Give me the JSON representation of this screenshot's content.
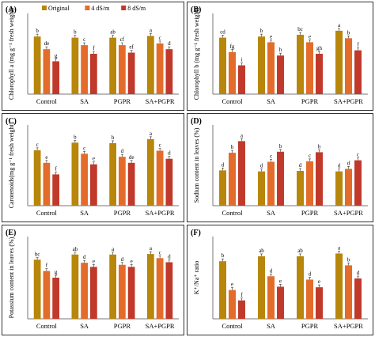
{
  "chart_data": [
    {
      "type": "bar",
      "panel_label": "(A)",
      "title": "",
      "ylabel": "Chlorophyll a (mg g⁻¹ fresh weight)",
      "categories": [
        "Control",
        "SA",
        "PGPR",
        "SA+PGPR"
      ],
      "legend": [
        "Original",
        "4 dS/m",
        "8 dS/m"
      ],
      "colors": [
        "#B8860B",
        "#E46C2A",
        "#C0392B"
      ],
      "series": [
        {
          "name": "Original",
          "values": [
            1.0,
            0.98,
            0.98,
            1.01
          ],
          "labels": [
            "b",
            "b",
            "ab",
            "a"
          ]
        },
        {
          "name": "4 dS/m",
          "values": [
            0.78,
            0.85,
            0.85,
            0.88
          ],
          "labels": [
            "de",
            "c",
            "cf",
            "c"
          ]
        },
        {
          "name": "8 dS/m",
          "values": [
            0.57,
            0.7,
            0.72,
            0.78
          ],
          "labels": [
            "g",
            "f",
            "ef",
            "d"
          ]
        }
      ],
      "ylim": [
        0,
        1.4
      ],
      "grid": false,
      "legend_position": "top"
    },
    {
      "type": "bar",
      "panel_label": "(B)",
      "title": "",
      "ylabel": "Chlorophyll b (mg g⁻¹ fresh weight)",
      "categories": [
        "Control",
        "SA",
        "PGPR",
        "SA+PGPR"
      ],
      "colors": [
        "#B8860B",
        "#E46C2A",
        "#C0392B"
      ],
      "series": [
        {
          "name": "Original",
          "values": [
            0.98,
            1.0,
            1.03,
            1.1
          ],
          "labels": [
            "cd",
            "b",
            "bc",
            "a"
          ]
        },
        {
          "name": "4 dS/m",
          "values": [
            0.73,
            0.9,
            0.9,
            0.97
          ],
          "labels": [
            "fg",
            "e",
            "e",
            "b"
          ]
        },
        {
          "name": "8 dS/m",
          "values": [
            0.5,
            0.67,
            0.7,
            0.76
          ],
          "labels": [
            "i",
            "h",
            "gh",
            "f"
          ]
        }
      ],
      "ylim": [
        0,
        1.4
      ],
      "grid": false
    },
    {
      "type": "bar",
      "panel_label": "(C)",
      "title": "",
      "ylabel": "Carotenoids(mg g⁻¹ fresh weight)",
      "categories": [
        "Control",
        "SA",
        "PGPR",
        "SA+PGPR"
      ],
      "colors": [
        "#B8860B",
        "#E46C2A",
        "#C0392B"
      ],
      "series": [
        {
          "name": "Original",
          "values": [
            1.1,
            1.25,
            1.24,
            1.32
          ],
          "labels": [
            "c",
            "b",
            "b",
            "a"
          ]
        },
        {
          "name": "4 dS/m",
          "values": [
            0.85,
            1.03,
            0.97,
            1.09
          ],
          "labels": [
            "e",
            "c",
            "d",
            "c"
          ]
        },
        {
          "name": "8 dS/m",
          "values": [
            0.62,
            0.82,
            0.85,
            0.93
          ],
          "labels": [
            "f",
            "e",
            "de",
            "d"
          ]
        }
      ],
      "ylim": [
        0,
        1.6
      ],
      "grid": false
    },
    {
      "type": "bar",
      "panel_label": "(D)",
      "title": "",
      "ylabel": "Sodium content in leaves (%)",
      "categories": [
        "Control",
        "SA",
        "PGPR",
        "SA+PGPR"
      ],
      "colors": [
        "#B8860B",
        "#E46C2A",
        "#C0392B"
      ],
      "series": [
        {
          "name": "Original",
          "values": [
            0.7,
            0.68,
            0.69,
            0.68
          ],
          "labels": [
            "d",
            "d",
            "d",
            "d"
          ]
        },
        {
          "name": "4 dS/m",
          "values": [
            1.05,
            0.87,
            0.88,
            0.73
          ],
          "labels": [
            "b",
            "c",
            "c",
            "d"
          ]
        },
        {
          "name": "8 dS/m",
          "values": [
            1.28,
            1.07,
            1.06,
            0.9
          ],
          "labels": [
            "a",
            "b",
            "b",
            "c"
          ]
        }
      ],
      "ylim": [
        0,
        1.6
      ],
      "grid": false
    },
    {
      "type": "bar",
      "panel_label": "(E)",
      "title": "",
      "ylabel": "Potassium content in leaves (%)",
      "categories": [
        "Control",
        "SA",
        "PGPR",
        "SA+PGPR"
      ],
      "colors": [
        "#B8860B",
        "#E46C2A",
        "#C0392B"
      ],
      "series": [
        {
          "name": "Original",
          "values": [
            1.15,
            1.25,
            1.25,
            1.26
          ],
          "labels": [
            "bc",
            "ab",
            "a",
            "a"
          ]
        },
        {
          "name": "4 dS/m",
          "values": [
            0.93,
            1.09,
            1.05,
            1.18
          ],
          "labels": [
            "f",
            "d",
            "d",
            "c"
          ]
        },
        {
          "name": "8 dS/m",
          "values": [
            0.8,
            1.01,
            1.01,
            1.1
          ],
          "labels": [
            "g",
            "e",
            "e",
            "d"
          ]
        }
      ],
      "ylim": [
        0,
        1.6
      ],
      "grid": false
    },
    {
      "type": "bar",
      "panel_label": "(F)",
      "title": "",
      "ylabel": "K⁺/Na⁺ ratio",
      "categories": [
        "Control",
        "SA",
        "PGPR",
        "SA+PGPR"
      ],
      "colors": [
        "#B8860B",
        "#E46C2A",
        "#C0392B"
      ],
      "series": [
        {
          "name": "Original",
          "values": [
            2.1,
            2.28,
            2.28,
            2.38
          ],
          "labels": [
            "b",
            "ab",
            "ab",
            "a"
          ]
        },
        {
          "name": "4 dS/m",
          "values": [
            1.05,
            1.55,
            1.43,
            1.95
          ],
          "labels": [
            "e",
            "d",
            "d",
            "b"
          ]
        },
        {
          "name": "8 dS/m",
          "values": [
            0.67,
            1.17,
            1.15,
            1.47
          ],
          "labels": [
            "f",
            "e",
            "e",
            "d"
          ]
        }
      ],
      "ylim": [
        0,
        3.0
      ],
      "grid": false
    }
  ]
}
